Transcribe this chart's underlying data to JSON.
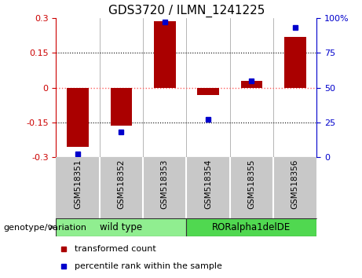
{
  "title": "GDS3720 / ILMN_1241225",
  "samples": [
    "GSM518351",
    "GSM518352",
    "GSM518353",
    "GSM518354",
    "GSM518355",
    "GSM518356"
  ],
  "transformed_count": [
    -0.255,
    -0.165,
    0.285,
    -0.032,
    0.03,
    0.22
  ],
  "percentile_rank": [
    2,
    18,
    97,
    27,
    55,
    93
  ],
  "groups": [
    {
      "label": "wild type",
      "indices": [
        0,
        1,
        2
      ],
      "color": "#90EE90"
    },
    {
      "label": "RORalpha1delDE",
      "indices": [
        3,
        4,
        5
      ],
      "color": "#50D850"
    }
  ],
  "ylim_left": [
    -0.3,
    0.3
  ],
  "ylim_right": [
    0,
    100
  ],
  "yticks_left": [
    -0.3,
    -0.15,
    0,
    0.15,
    0.3
  ],
  "yticks_right": [
    0,
    25,
    50,
    75,
    100
  ],
  "ytick_labels_right": [
    "0",
    "25",
    "50",
    "75",
    "100%"
  ],
  "ytick_labels_left": [
    "-0.3",
    "-0.15",
    "0",
    "0.15",
    "0.3"
  ],
  "hlines_dotted": [
    -0.15,
    0.15
  ],
  "zero_line_color": "#FF6060",
  "bar_color": "#AA0000",
  "point_color": "#0000CC",
  "bar_width": 0.5,
  "sample_bg_color": "#C8C8C8",
  "sample_border_color": "#888888",
  "legend_items": [
    {
      "label": "transformed count",
      "color": "#AA0000"
    },
    {
      "label": "percentile rank within the sample",
      "color": "#0000CC"
    }
  ],
  "genotype_label": "genotype/variation",
  "title_fontsize": 11,
  "tick_fontsize": 8,
  "sample_fontsize": 7.5,
  "group_fontsize": 8.5,
  "legend_fontsize": 8,
  "genotype_fontsize": 8
}
